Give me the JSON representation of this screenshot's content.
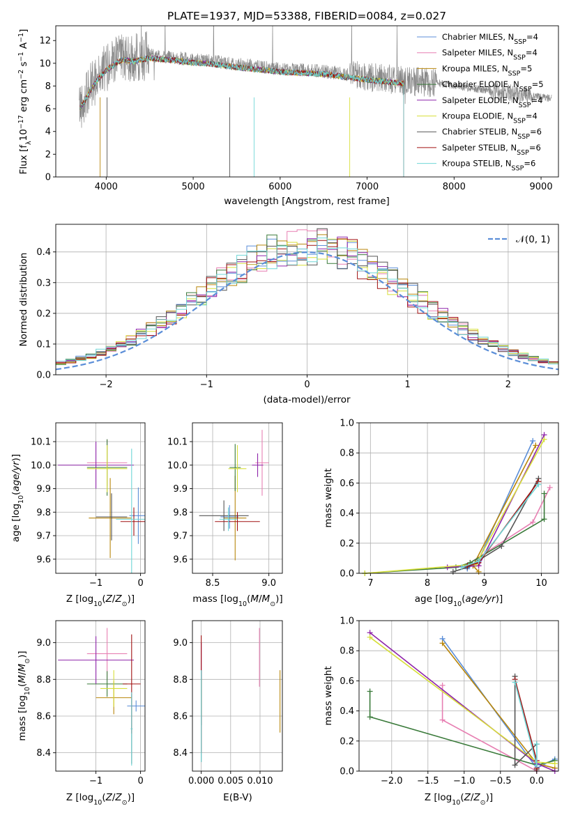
{
  "title": "PLATE=1937, MJD=53388, FIBERID=0084, z=0.027",
  "colors": {
    "Chabrier MILES": "#5b8ed8",
    "Salpeter MILES": "#e77fb2",
    "Kroupa MILES": "#b8860b",
    "Chabrier ELODIE": "#3a7a3a",
    "Salpeter ELODIE": "#8e24aa",
    "Kroupa ELODIE": "#d7df3a",
    "Chabrier STELIB": "#555555",
    "Salpeter STELIB": "#a01010",
    "Kroupa STELIB": "#6fd6d6",
    "spectrum": "#8a8a8a",
    "normal": "#5b8ed8",
    "grid": "#b0b0b0"
  },
  "chart_data": [
    {
      "type": "line",
      "id": "spectrum",
      "xlabel": "wavelength [Angstrom, rest frame]",
      "ylabel_parts": [
        "Flux [f",
        "λ",
        "10",
        "−17",
        " erg cm",
        "−2",
        " s",
        "−1",
        " A",
        "−1",
        "]"
      ],
      "xlim": [
        3420,
        9200
      ],
      "ylim": [
        0,
        13.3
      ],
      "xticks": [
        4000,
        5000,
        6000,
        7000,
        8000,
        9000
      ],
      "yticks": [
        0,
        2,
        4,
        6,
        8,
        10,
        12
      ],
      "legend_position": "top-right",
      "series": [
        {
          "name": "Chabrier MILES",
          "label": "Chabrier MILES, N",
          "sub": "SSP",
          "n": "=4"
        },
        {
          "name": "Salpeter MILES",
          "label": "Salpeter MILES, N",
          "sub": "SSP",
          "n": "=4"
        },
        {
          "name": "Kroupa MILES",
          "label": "Kroupa MILES, N",
          "sub": "SSP",
          "n": "=5"
        },
        {
          "name": "Chabrier ELODIE",
          "label": "Chabrier ELODIE, N",
          "sub": "SSP",
          "n": "=5"
        },
        {
          "name": "Salpeter ELODIE",
          "label": "Salpeter ELODIE, N",
          "sub": "SSP",
          "n": "=4"
        },
        {
          "name": "Kroupa ELODIE",
          "label": "Kroupa ELODIE, N",
          "sub": "SSP",
          "n": "=4"
        },
        {
          "name": "Chabrier STELIB",
          "label": "Chabrier STELIB, N",
          "sub": "SSP",
          "n": "=6"
        },
        {
          "name": "Salpeter STELIB",
          "label": "Salpeter STELIB, N",
          "sub": "SSP",
          "n": "=6"
        },
        {
          "name": "Kroupa STELIB",
          "label": "Kroupa STELIB, N",
          "sub": "SSP",
          "n": "=6"
        }
      ],
      "continuum": {
        "x": [
          3700,
          3750,
          3800,
          3900,
          4000,
          4100,
          4200,
          4300,
          4500,
          4800,
          5000,
          5200,
          5500,
          6000,
          6500,
          7000,
          7400,
          7500,
          7800,
          8000,
          8300,
          8600,
          8800,
          9000,
          9100
        ],
        "y": [
          6.3,
          6.9,
          7.6,
          8.8,
          9.6,
          10.2,
          10.6,
          10.4,
          10.7,
          10.5,
          10.3,
          10.2,
          9.9,
          9.5,
          9.3,
          8.8,
          8.5,
          8.4,
          8.3,
          8.0,
          7.7,
          7.4,
          7.2,
          7.0,
          6.9
        ]
      },
      "model_end_wavelength": 7420
    },
    {
      "type": "bar",
      "id": "residuals",
      "xlabel": "(data-model)/error",
      "ylabel": "Normed distribution",
      "xlim": [
        -2.5,
        2.5
      ],
      "ylim": [
        0,
        0.49
      ],
      "xticks": [
        -2,
        -1,
        0,
        1,
        2
      ],
      "xticklabels": [
        "−2",
        "−1",
        "0",
        "1",
        "2"
      ],
      "yticks": [
        0.0,
        0.1,
        0.2,
        0.3,
        0.4
      ],
      "legend_label": "𝒩(0, 1)",
      "legend_position": "top-right",
      "bin_width": 0.1,
      "bins_start": -2.5
    },
    {
      "type": "scatter",
      "id": "age-vs-Z",
      "xlabel_parts": [
        "Z [log",
        "10",
        "(Z/Z",
        "⊙",
        ")]"
      ],
      "ylabel_parts": [
        "age  [log",
        "10",
        "(age/yr)]"
      ],
      "xlim": [
        -1.9,
        0.1
      ],
      "ylim": [
        9.54,
        10.18
      ],
      "xticks": [
        -1,
        0
      ],
      "xticklabels": [
        "−1",
        "0"
      ],
      "yticks": [
        9.6,
        9.7,
        9.8,
        9.9,
        10.0,
        10.1
      ],
      "points": [
        {
          "s": "Chabrier MILES",
          "x": -0.05,
          "y": 9.785,
          "xe": 0.2,
          "ye": 0.12
        },
        {
          "s": "Salpeter MILES",
          "x": -0.75,
          "y": 10.01,
          "xe": 0.45,
          "ye": 0.1
        },
        {
          "s": "Kroupa MILES",
          "x": -0.68,
          "y": 9.775,
          "xe": 0.48,
          "ye": 0.17
        },
        {
          "s": "Chabrier ELODIE",
          "x": -0.75,
          "y": 9.99,
          "xe": 0.45,
          "ye": 0.12
        },
        {
          "s": "Salpeter ELODIE",
          "x": -1.0,
          "y": 10.0,
          "xe": 0.85,
          "ye": 0.1
        },
        {
          "s": "Kroupa ELODIE",
          "x": -0.75,
          "y": 9.985,
          "xe": 0.45,
          "ye": 0.1
        },
        {
          "s": "Chabrier STELIB",
          "x": -0.65,
          "y": 9.78,
          "xe": 0.35,
          "ye": 0.1
        },
        {
          "s": "Salpeter STELIB",
          "x": -0.15,
          "y": 9.76,
          "xe": 0.3,
          "ye": 0.06
        },
        {
          "s": "Kroupa STELIB",
          "x": -0.2,
          "y": 9.77,
          "xe": 0.35,
          "ye": 0.3
        }
      ]
    },
    {
      "type": "scatter",
      "id": "age-vs-mass",
      "xlabel_parts": [
        "mass [log",
        "10",
        "(M/M",
        "⊙",
        ")]"
      ],
      "xlim": [
        8.32,
        9.12
      ],
      "ylim": [
        9.54,
        10.18
      ],
      "xticks": [
        8.5,
        9.0
      ],
      "xticklabels": [
        "8.5",
        "9.0"
      ],
      "yticks": [
        9.6,
        9.7,
        9.8,
        9.9,
        10.0,
        10.1
      ],
      "points": [
        {
          "s": "Chabrier MILES",
          "x": 8.65,
          "y": 9.78,
          "xe": 0.08,
          "ye": 0.05
        },
        {
          "s": "Salpeter MILES",
          "x": 8.94,
          "y": 10.01,
          "xe": 0.06,
          "ye": 0.14
        },
        {
          "s": "Kroupa MILES",
          "x": 8.7,
          "y": 9.775,
          "xe": 0.1,
          "ye": 0.18
        },
        {
          "s": "Chabrier ELODIE",
          "x": 8.7,
          "y": 9.99,
          "xe": 0.05,
          "ye": 0.1
        },
        {
          "s": "Salpeter ELODIE",
          "x": 8.9,
          "y": 10.0,
          "xe": 0.05,
          "ye": 0.05
        },
        {
          "s": "Kroupa ELODIE",
          "x": 8.72,
          "y": 9.985,
          "xe": 0.08,
          "ye": 0.1
        },
        {
          "s": "Chabrier STELIB",
          "x": 8.6,
          "y": 9.785,
          "xe": 0.22,
          "ye": 0.065
        },
        {
          "s": "Salpeter STELIB",
          "x": 8.72,
          "y": 9.76,
          "xe": 0.2,
          "ye": 0.04
        },
        {
          "s": "Kroupa STELIB",
          "x": 8.64,
          "y": 9.77,
          "xe": 0.08,
          "ye": 0.05
        }
      ]
    },
    {
      "type": "line",
      "id": "mass-weight-vs-age",
      "xlabel_parts": [
        "age  [log",
        "10",
        "(age/yr)]"
      ],
      "ylabel": "mass weight",
      "xlim": [
        6.8,
        10.3
      ],
      "ylim": [
        0,
        1.0
      ],
      "xticks": [
        7,
        8,
        9,
        10
      ],
      "yticks": [
        0.0,
        0.2,
        0.4,
        0.6,
        0.8,
        1.0
      ],
      "series": [
        {
          "s": "Chabrier MILES",
          "x": [
            8.7,
            8.9,
            9.85
          ],
          "y": [
            0.03,
            0.09,
            0.88
          ]
        },
        {
          "s": "Salpeter MILES",
          "x": [
            8.75,
            9.85,
            10.15
          ],
          "y": [
            0.07,
            0.34,
            0.57
          ]
        },
        {
          "s": "Kroupa MILES",
          "x": [
            8.9,
            8.8,
            9.9
          ],
          "y": [
            0.01,
            0.05,
            0.85
          ]
        },
        {
          "s": "Chabrier ELODIE",
          "x": [
            6.9,
            8.5,
            8.75,
            10.05,
            10.05
          ],
          "y": [
            0.0,
            0.04,
            0.07,
            0.36,
            0.53
          ]
        },
        {
          "s": "Salpeter ELODIE",
          "x": [
            8.35,
            8.9,
            10.05
          ],
          "y": [
            0.04,
            0.05,
            0.92
          ]
        },
        {
          "s": "Kroupa ELODIE",
          "x": [
            6.9,
            8.85,
            10.05
          ],
          "y": [
            0.0,
            0.06,
            0.89
          ]
        },
        {
          "s": "Chabrier STELIB",
          "x": [
            8.45,
            8.7,
            9.3,
            9.95
          ],
          "y": [
            0.01,
            0.04,
            0.18,
            0.63
          ]
        },
        {
          "s": "Salpeter STELIB",
          "x": [
            8.7,
            8.9,
            9.95
          ],
          "y": [
            0.05,
            0.07,
            0.61
          ]
        },
        {
          "s": "Kroupa STELIB",
          "x": [
            8.6,
            8.9,
            9.95
          ],
          "y": [
            0.04,
            0.08,
            0.59
          ]
        }
      ]
    },
    {
      "type": "scatter",
      "id": "mass-vs-Z",
      "xlabel_parts": [
        "Z [log",
        "10",
        "(Z/Z",
        "⊙",
        ")]"
      ],
      "ylabel_parts": [
        "mass [log",
        "10",
        "(M/M",
        "⊙",
        ")]"
      ],
      "xlim": [
        -1.9,
        0.1
      ],
      "ylim": [
        8.3,
        9.12
      ],
      "xticks": [
        -1,
        0
      ],
      "xticklabels": [
        "−1",
        "0"
      ],
      "yticks": [
        8.4,
        8.6,
        8.8,
        9.0
      ],
      "points": [
        {
          "s": "Chabrier MILES",
          "x": -0.1,
          "y": 8.655,
          "xe": 0.2,
          "ye": 0.03
        },
        {
          "s": "Salpeter MILES",
          "x": -0.75,
          "y": 8.94,
          "xe": 0.45,
          "ye": 0.14
        },
        {
          "s": "Kroupa MILES",
          "x": -0.6,
          "y": 8.7,
          "xe": 0.4,
          "ye": 0.09
        },
        {
          "s": "Chabrier ELODIE",
          "x": -0.75,
          "y": 8.775,
          "xe": 0.45,
          "ye": 0.07
        },
        {
          "s": "Salpeter ELODIE",
          "x": -1.0,
          "y": 8.905,
          "xe": 0.85,
          "ye": 0.13
        },
        {
          "s": "Kroupa ELODIE",
          "x": -0.6,
          "y": 8.75,
          "xe": 0.3,
          "ye": 0.1
        },
        {
          "s": "Chabrier STELIB",
          "x": -0.2,
          "y": 8.53,
          "xe": 0.02,
          "ye": 0.19
        },
        {
          "s": "Salpeter STELIB",
          "x": -0.2,
          "y": 8.775,
          "xe": 0.2,
          "ye": 0.27
        },
        {
          "s": "Kroupa STELIB",
          "x": -0.2,
          "y": 8.53,
          "xe": 0.02,
          "ye": 0.2
        }
      ]
    },
    {
      "type": "scatter",
      "id": "mass-vs-ebv",
      "xlabel": "E(B-V)",
      "xlim": [
        -0.0015,
        0.0138
      ],
      "ylim": [
        8.3,
        9.12
      ],
      "xticks": [
        0.0,
        0.005,
        0.01
      ],
      "xticklabels": [
        "0.000",
        "0.005",
        "0.010"
      ],
      "yticks": [
        8.4,
        8.6,
        8.8,
        9.0
      ],
      "points": [
        {
          "s": "Chabrier MILES",
          "x": 0.0,
          "y": 8.7,
          "ye": 0.15
        },
        {
          "s": "Salpeter MILES",
          "x": 0.0099,
          "y": 8.92,
          "ye": 0.16
        },
        {
          "s": "Kroupa MILES",
          "x": 0.0134,
          "y": 8.68,
          "ye": 0.17
        },
        {
          "s": "Chabrier ELODIE",
          "x": 0.0,
          "y": 8.7,
          "ye": 0.15
        },
        {
          "s": "Salpeter ELODIE",
          "x": 0.0,
          "y": 8.9,
          "ye": 0.1
        },
        {
          "s": "Kroupa ELODIE",
          "x": 0.0,
          "y": 8.7,
          "ye": 0.1
        },
        {
          "s": "Chabrier STELIB",
          "x": 0.0,
          "y": 8.6,
          "ye": 0.25
        },
        {
          "s": "Salpeter STELIB",
          "x": 0.0,
          "y": 8.72,
          "ye": 0.32
        },
        {
          "s": "Kroupa STELIB",
          "x": 0.0,
          "y": 8.6,
          "ye": 0.25
        }
      ]
    },
    {
      "type": "line",
      "id": "mass-weight-vs-Z",
      "xlabel_parts": [
        "Z [log",
        "10",
        "(Z/Z",
        "⊙",
        ")]"
      ],
      "ylabel": "mass weight",
      "xlim": [
        -2.45,
        0.3
      ],
      "ylim": [
        0,
        1.0
      ],
      "xticks": [
        -2.0,
        -1.5,
        -1.0,
        -0.5,
        0.0
      ],
      "xticklabels": [
        "−2.0",
        "−1.5",
        "−1.0",
        "−0.5",
        "0.0"
      ],
      "yticks": [
        0.0,
        0.2,
        0.4,
        0.6,
        0.8,
        1.0
      ],
      "series": [
        {
          "s": "Chabrier MILES",
          "x": [
            -1.3,
            0.0,
            0.25
          ],
          "y": [
            0.88,
            0.02,
            0.08
          ]
        },
        {
          "s": "Salpeter MILES",
          "x": [
            -1.3,
            -1.3,
            0.0,
            0.0
          ],
          "y": [
            0.57,
            0.34,
            0.0,
            0.06
          ]
        },
        {
          "s": "Kroupa MILES",
          "x": [
            -1.3,
            0.0,
            0.25
          ],
          "y": [
            0.85,
            0.05,
            0.02
          ]
        },
        {
          "s": "Chabrier ELODIE",
          "x": [
            -2.3,
            -2.3,
            0.0,
            0.25
          ],
          "y": [
            0.53,
            0.36,
            0.04,
            0.07
          ]
        },
        {
          "s": "Salpeter ELODIE",
          "x": [
            -2.3,
            0.0,
            0.25
          ],
          "y": [
            0.92,
            0.05,
            0.0
          ]
        },
        {
          "s": "Kroupa ELODIE",
          "x": [
            -2.3,
            0.0,
            0.25
          ],
          "y": [
            0.89,
            0.06,
            0.05
          ]
        },
        {
          "s": "Chabrier STELIB",
          "x": [
            -0.3,
            -0.3,
            0.0,
            0.0
          ],
          "y": [
            0.63,
            0.04,
            0.18,
            0.01
          ]
        },
        {
          "s": "Salpeter STELIB",
          "x": [
            -0.3,
            0.0,
            0.0
          ],
          "y": [
            0.61,
            0.07,
            0.02
          ]
        },
        {
          "s": "Kroupa STELIB",
          "x": [
            -0.3,
            0.0,
            0.0
          ],
          "y": [
            0.59,
            0.04,
            0.18
          ]
        }
      ]
    }
  ]
}
